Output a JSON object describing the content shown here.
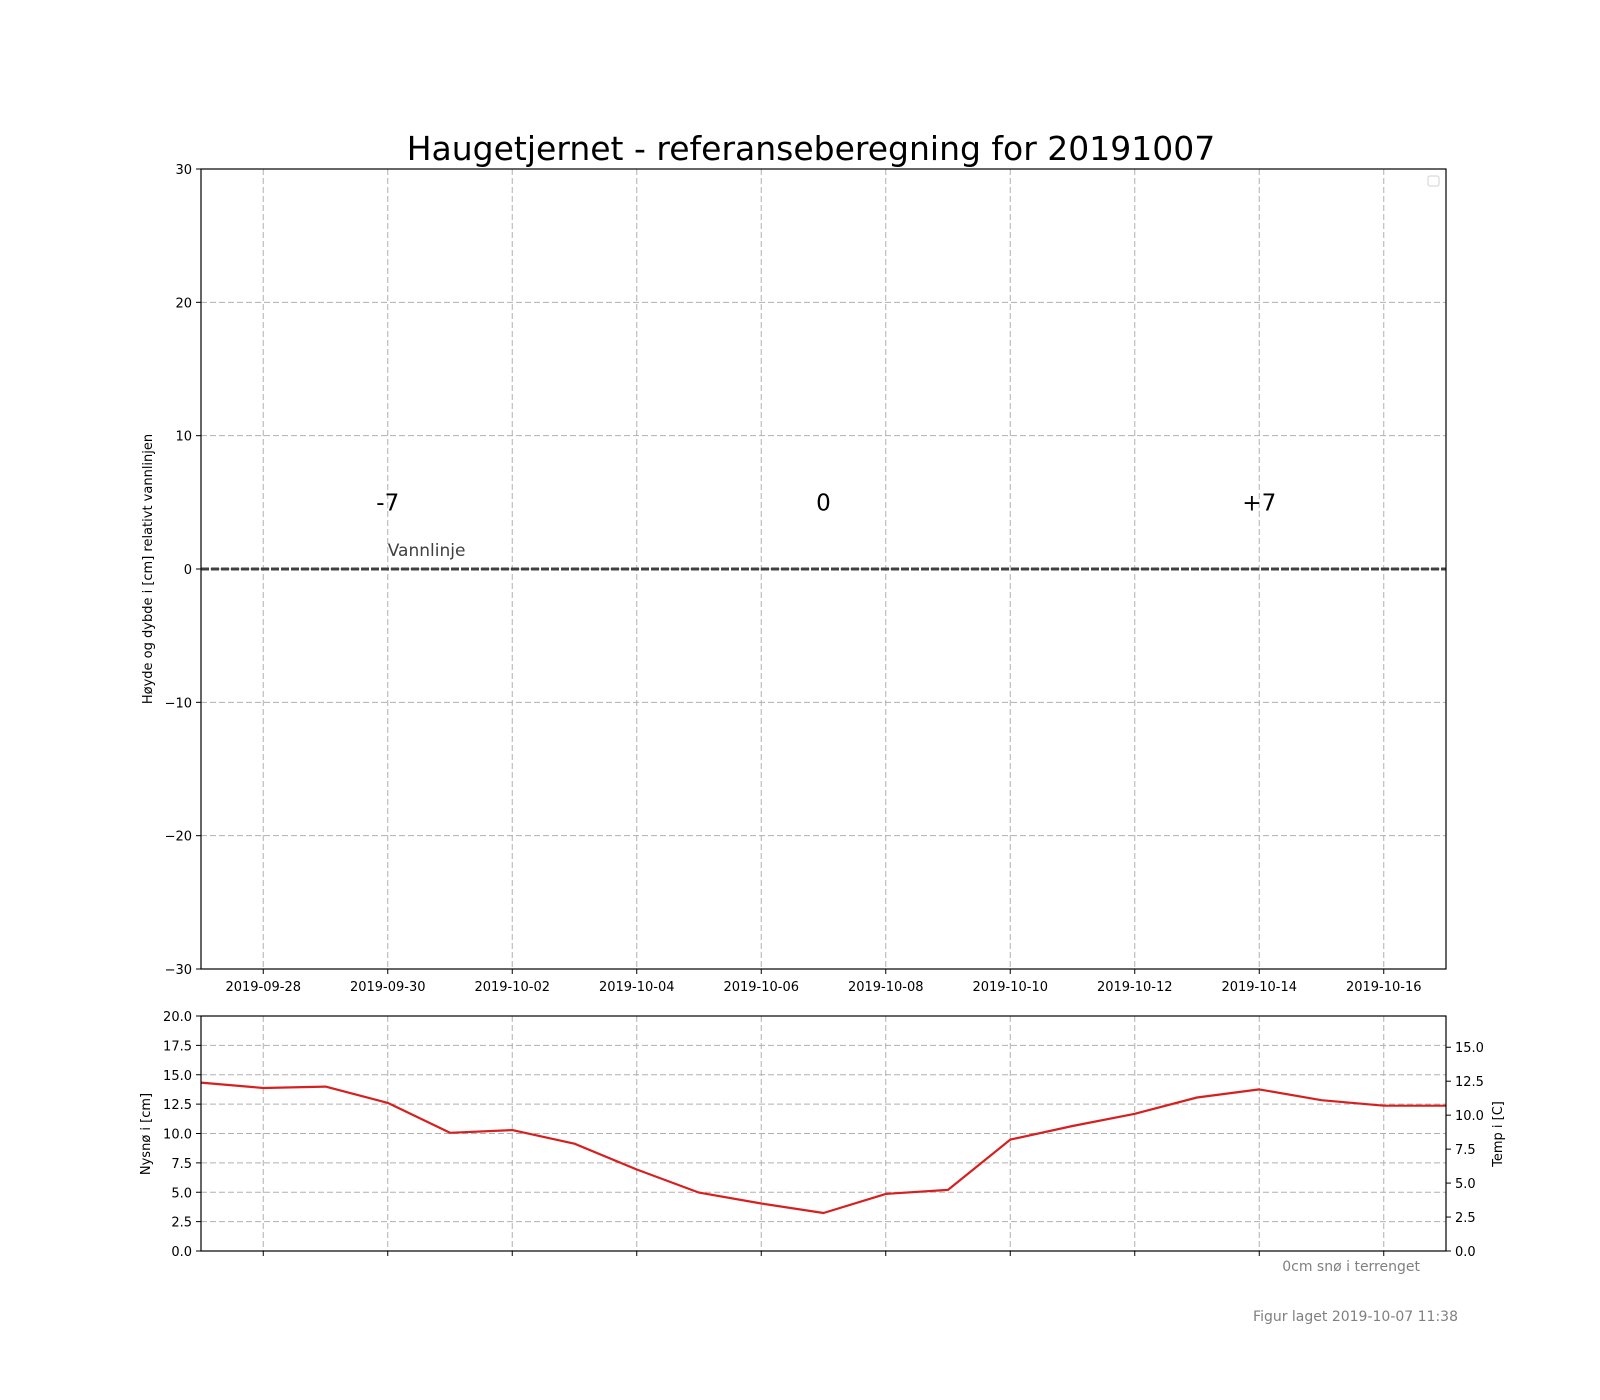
{
  "chart_data": [
    {
      "type": "line",
      "title": "Haugetjernet - referanseberegning for 20191007",
      "ylabel": "Høyde og dybde i [cm] relativt vannlinjen",
      "ylim": [
        -30,
        30
      ],
      "yticks": [
        "30",
        "20",
        "10",
        "0",
        "−10",
        "−20",
        "−30"
      ],
      "xticks": [
        "2019-09-28",
        "2019-09-30",
        "2019-10-02",
        "2019-10-04",
        "2019-10-06",
        "2019-10-08",
        "2019-10-10",
        "2019-10-12",
        "2019-10-14",
        "2019-10-16"
      ],
      "xlim": [
        "2019-09-27",
        "2019-10-17"
      ],
      "grid": true,
      "reference_line": {
        "y": 0,
        "label": "Vannlinje"
      },
      "annotations": [
        {
          "text": "-7",
          "x": "2019-09-30",
          "y": 5
        },
        {
          "text": "0",
          "x": "2019-10-07",
          "y": 5
        },
        {
          "text": "+7",
          "x": "2019-10-14",
          "y": 5
        }
      ]
    },
    {
      "type": "line",
      "ylabel": "Nysnø i [cm]",
      "ylabel_right": "Temp i [C]",
      "ylim": [
        0,
        20
      ],
      "ylim_right": [
        0,
        17.3
      ],
      "yticks": [
        "20.0",
        "17.5",
        "15.0",
        "12.5",
        "10.0",
        "7.5",
        "5.0",
        "2.5",
        "0.0"
      ],
      "yticks_right": [
        "15.0",
        "12.5",
        "10.0",
        "7.5",
        "5.0",
        "2.5",
        "0.0"
      ],
      "grid": true,
      "series": [
        {
          "axis": "right",
          "color": "#d62020",
          "x": [
            "2019-09-27",
            "2019-09-28",
            "2019-09-29",
            "2019-09-30",
            "2019-10-01",
            "2019-10-02",
            "2019-10-03",
            "2019-10-04",
            "2019-10-05",
            "2019-10-06",
            "2019-10-07",
            "2019-10-08",
            "2019-10-09",
            "2019-10-10",
            "2019-10-11",
            "2019-10-12",
            "2019-10-13",
            "2019-10-14",
            "2019-10-15",
            "2019-10-16",
            "2019-10-17"
          ],
          "values": [
            12.4,
            12.0,
            12.1,
            10.9,
            8.7,
            8.9,
            7.9,
            6.0,
            4.3,
            3.5,
            2.8,
            4.2,
            4.5,
            8.2,
            9.2,
            10.1,
            11.3,
            11.9,
            11.1,
            10.7,
            10.7
          ]
        }
      ],
      "annotations": [
        {
          "text": "0cm snø i terrenget"
        }
      ]
    }
  ],
  "footer": {
    "timestamp": "Figur laget 2019-10-07 11:38"
  }
}
